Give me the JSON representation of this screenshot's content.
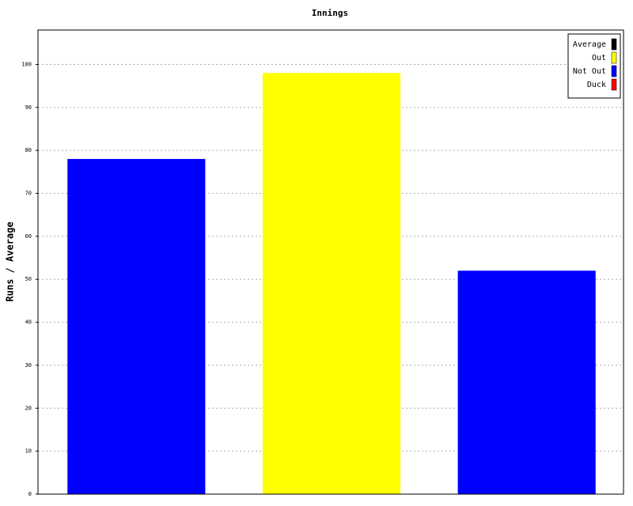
{
  "chart_data": {
    "type": "bar",
    "title": "Innings",
    "y_label": "Runs / Average",
    "categories": [
      null,
      null,
      null
    ],
    "series": [
      {
        "name": "Average",
        "color": "#000000",
        "values": [
          null,
          null,
          null
        ]
      },
      {
        "name": "Out",
        "color": "#ffff00",
        "values": [
          null,
          98,
          null
        ]
      },
      {
        "name": "Not Out",
        "color": "#0000ff",
        "values": [
          78,
          null,
          52
        ]
      },
      {
        "name": "Duck",
        "color": "#ff0000",
        "values": [
          null,
          null,
          null
        ]
      }
    ],
    "ylim": [
      0,
      108
    ],
    "yticks": [
      0,
      10,
      20,
      30,
      40,
      50,
      60,
      70,
      80,
      90,
      100
    ],
    "grid": true,
    "legend": "top-right"
  }
}
